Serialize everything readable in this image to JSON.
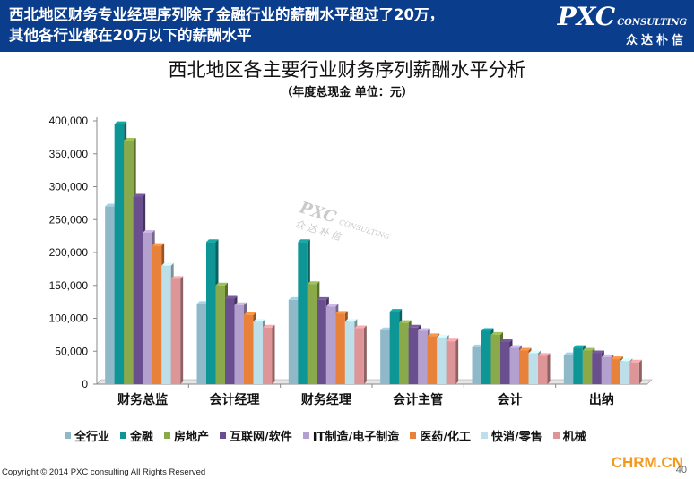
{
  "header": {
    "title_line1": "西北地区财务专业经理序列除了金融行业的薪酬水平超过了20万，",
    "title_line2": "其他各行业都在20万以下的薪酬水平",
    "logo_main": "PXC",
    "logo_sub": "CONSULTING",
    "logo_cn": "众达朴信"
  },
  "watermark": {
    "main": "PXC",
    "sub": "CONSULTING",
    "cn": "众达朴信"
  },
  "footer": {
    "copyright": "Copyright © 2014 PXC consulting All Rights Reserved",
    "site": "CHRM.CN",
    "page_number": "40"
  },
  "colors": {
    "header_bg": "#0a3d8c",
    "series": [
      "#8fb8c9",
      "#0e9595",
      "#8aa94a",
      "#6a4f8e",
      "#b4a0cf",
      "#e8823a",
      "#bcdfe9",
      "#dd9598"
    ]
  },
  "chart_data": {
    "type": "bar",
    "title": "西北地区各主要行业财务序列薪酬水平分析",
    "subtitle": "（年度总现金 单位：元）",
    "xlabel": "",
    "ylabel": "",
    "ylim": [
      0,
      400000
    ],
    "yticks": [
      0,
      50000,
      100000,
      150000,
      200000,
      250000,
      300000,
      350000,
      400000
    ],
    "ytick_labels": [
      "0",
      "50,000",
      "100,000",
      "150,000",
      "200,000",
      "250,000",
      "300,000",
      "350,000",
      "400,000"
    ],
    "grid": false,
    "legend_position": "bottom",
    "categories": [
      "财务总监",
      "会计经理",
      "财务经理",
      "会计主管",
      "会计",
      "出纳"
    ],
    "series": [
      {
        "name": "全行业",
        "values": [
          270000,
          122000,
          128000,
          82000,
          56000,
          44000
        ]
      },
      {
        "name": "金融",
        "values": [
          395000,
          216000,
          216000,
          110000,
          81000,
          55000
        ]
      },
      {
        "name": "房地产",
        "values": [
          370000,
          150000,
          152000,
          93000,
          75000,
          51000
        ]
      },
      {
        "name": "互联网/软件",
        "values": [
          285000,
          130000,
          128000,
          86000,
          64000,
          47000
        ]
      },
      {
        "name": "IT制造/电子制造",
        "values": [
          230000,
          120000,
          118000,
          81000,
          55000,
          41000
        ]
      },
      {
        "name": "医药/化工",
        "values": [
          210000,
          105000,
          107000,
          73000,
          51000,
          38000
        ]
      },
      {
        "name": "快消/零售",
        "values": [
          180000,
          95000,
          95000,
          71000,
          47000,
          35000
        ]
      },
      {
        "name": "机械",
        "values": [
          160000,
          86000,
          85000,
          65000,
          43000,
          33000
        ]
      }
    ]
  }
}
